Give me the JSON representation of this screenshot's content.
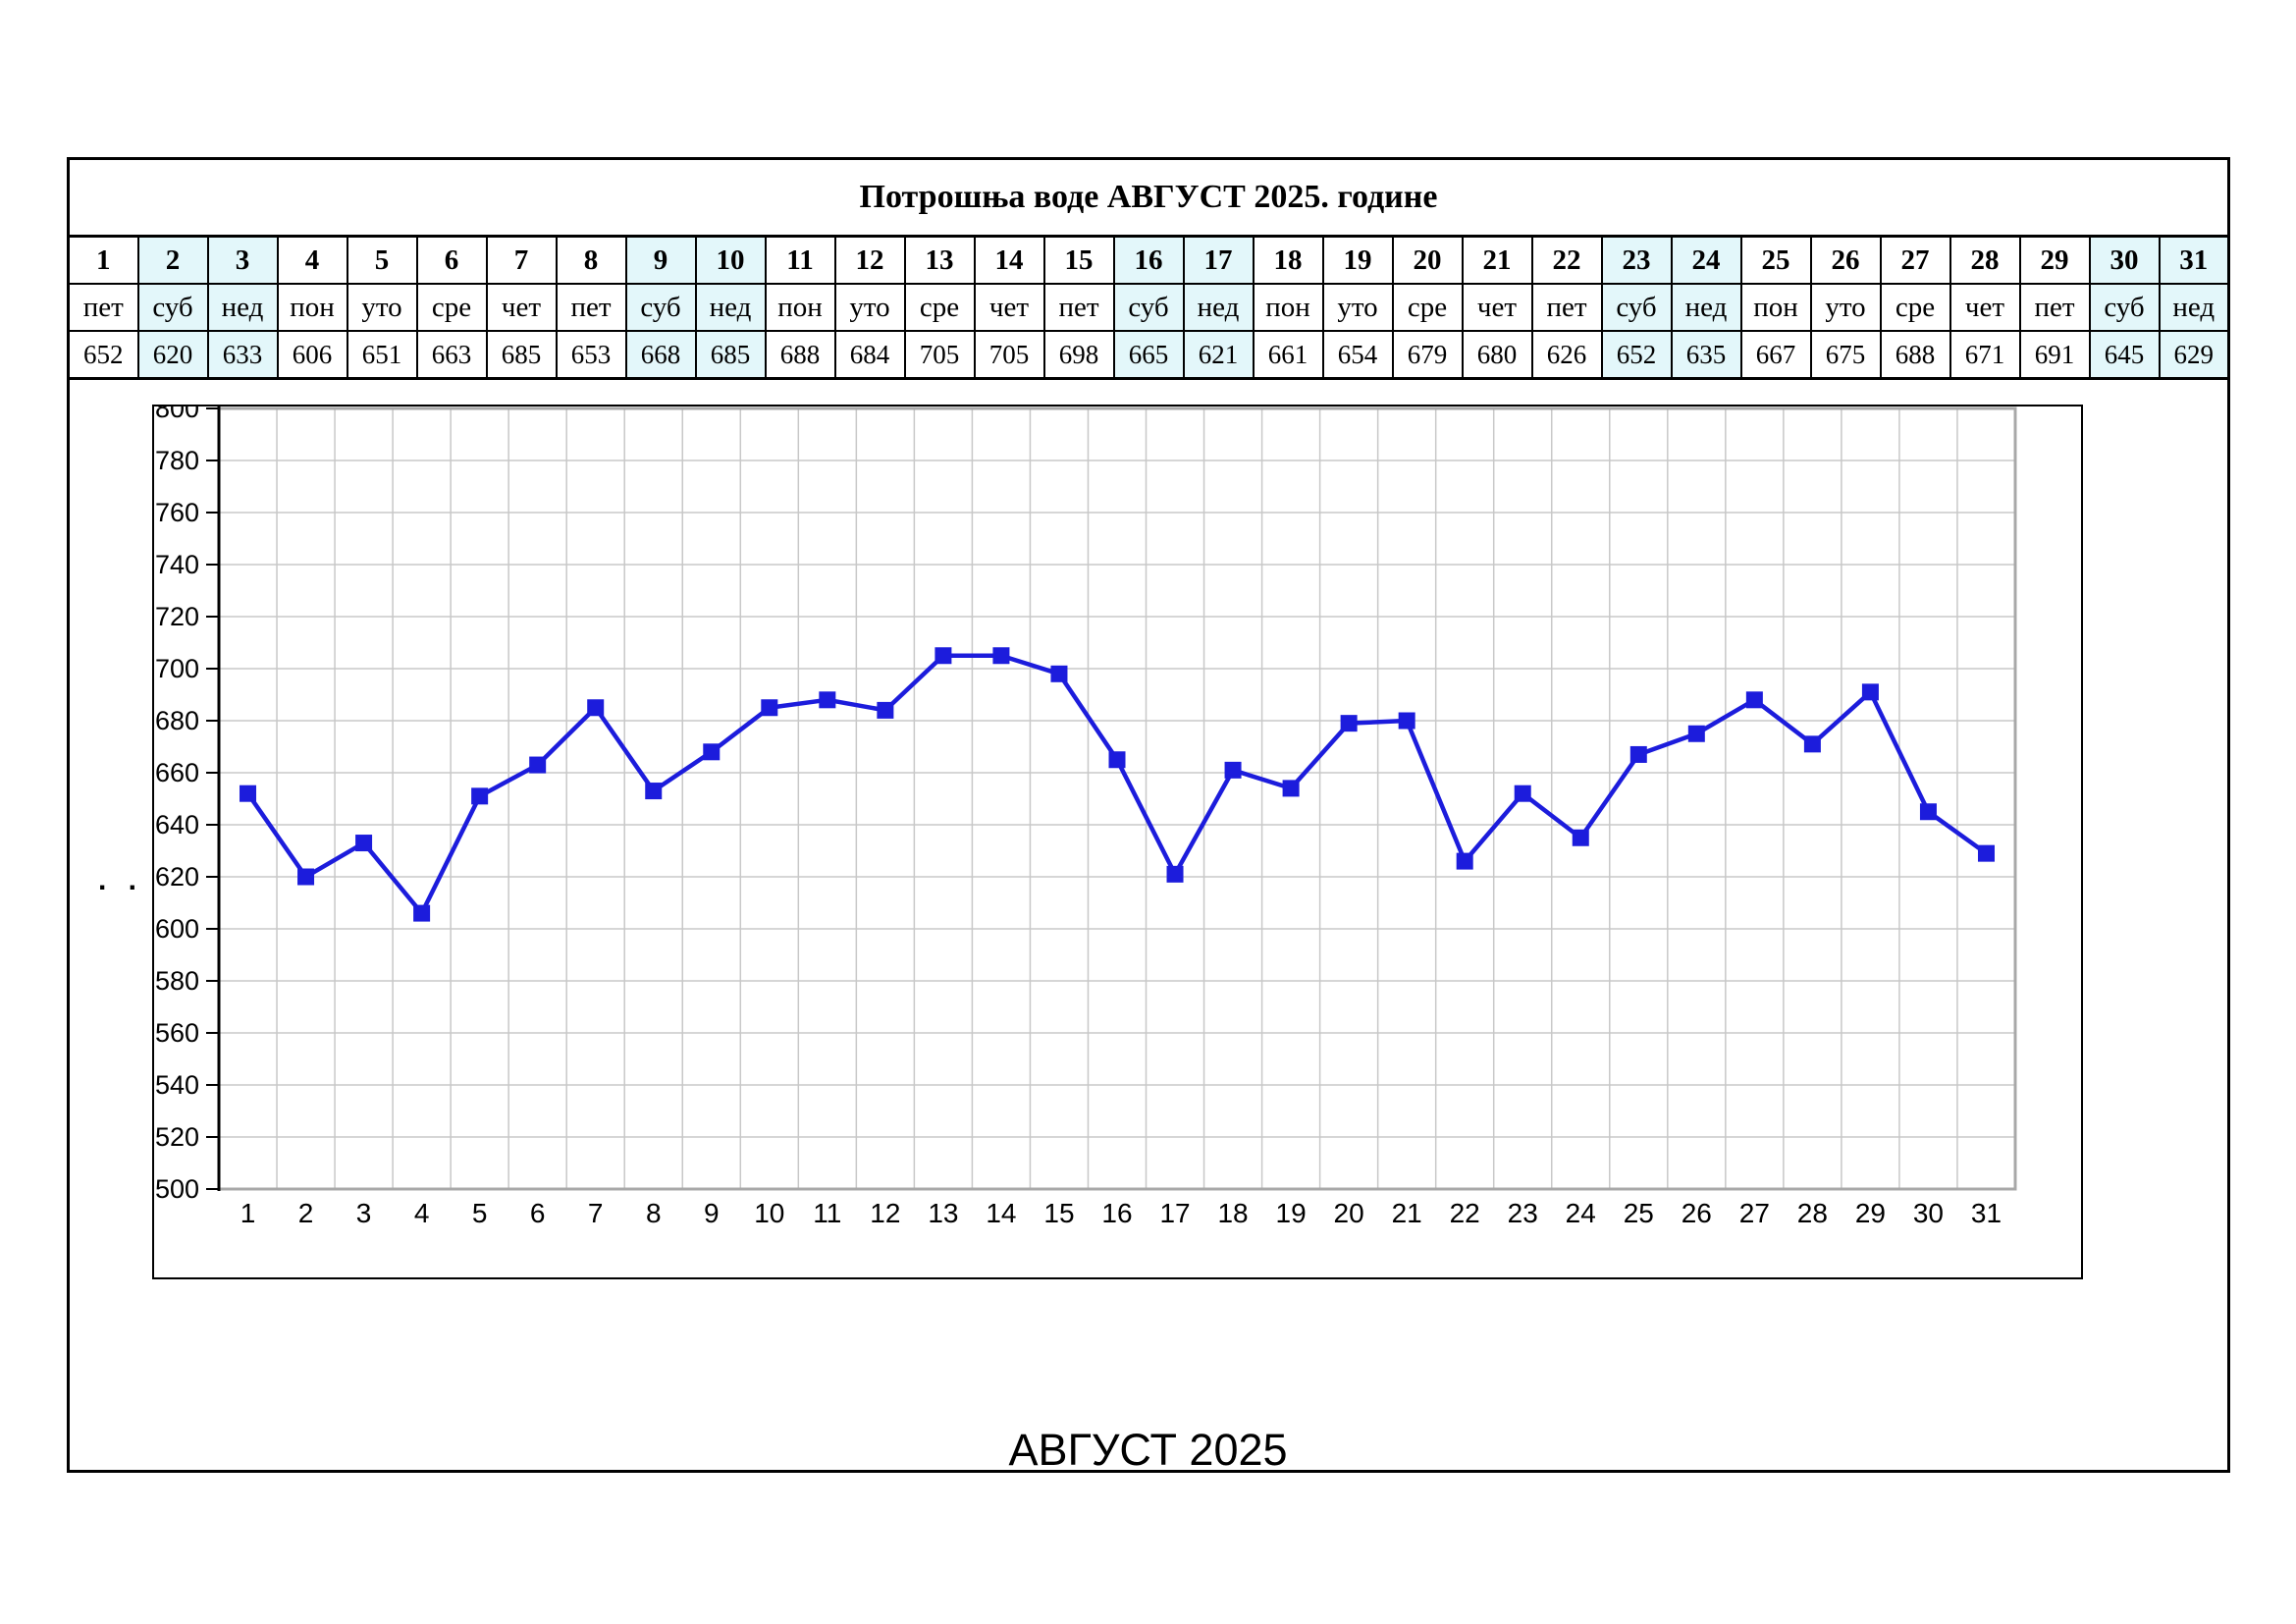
{
  "table": {
    "title": "Потрошња воде АВГУСТ 2025. године",
    "days": [
      {
        "num": 1,
        "name": "пет",
        "value": 652,
        "weekend": false
      },
      {
        "num": 2,
        "name": "суб",
        "value": 620,
        "weekend": true
      },
      {
        "num": 3,
        "name": "нед",
        "value": 633,
        "weekend": true
      },
      {
        "num": 4,
        "name": "пон",
        "value": 606,
        "weekend": false
      },
      {
        "num": 5,
        "name": "уто",
        "value": 651,
        "weekend": false
      },
      {
        "num": 6,
        "name": "сре",
        "value": 663,
        "weekend": false
      },
      {
        "num": 7,
        "name": "чет",
        "value": 685,
        "weekend": false
      },
      {
        "num": 8,
        "name": "пет",
        "value": 653,
        "weekend": false
      },
      {
        "num": 9,
        "name": "суб",
        "value": 668,
        "weekend": true
      },
      {
        "num": 10,
        "name": "нед",
        "value": 685,
        "weekend": true
      },
      {
        "num": 11,
        "name": "пон",
        "value": 688,
        "weekend": false
      },
      {
        "num": 12,
        "name": "уто",
        "value": 684,
        "weekend": false
      },
      {
        "num": 13,
        "name": "сре",
        "value": 705,
        "weekend": false
      },
      {
        "num": 14,
        "name": "чет",
        "value": 705,
        "weekend": false
      },
      {
        "num": 15,
        "name": "пет",
        "value": 698,
        "weekend": false
      },
      {
        "num": 16,
        "name": "суб",
        "value": 665,
        "weekend": true
      },
      {
        "num": 17,
        "name": "нед",
        "value": 621,
        "weekend": true
      },
      {
        "num": 18,
        "name": "пон",
        "value": 661,
        "weekend": false
      },
      {
        "num": 19,
        "name": "уто",
        "value": 654,
        "weekend": false
      },
      {
        "num": 20,
        "name": "сре",
        "value": 679,
        "weekend": false
      },
      {
        "num": 21,
        "name": "чет",
        "value": 680,
        "weekend": false
      },
      {
        "num": 22,
        "name": "пет",
        "value": 626,
        "weekend": false
      },
      {
        "num": 23,
        "name": "суб",
        "value": 652,
        "weekend": true
      },
      {
        "num": 24,
        "name": "нед",
        "value": 635,
        "weekend": true
      },
      {
        "num": 25,
        "name": "пон",
        "value": 667,
        "weekend": false
      },
      {
        "num": 26,
        "name": "уто",
        "value": 675,
        "weekend": false
      },
      {
        "num": 27,
        "name": "сре",
        "value": 688,
        "weekend": false
      },
      {
        "num": 28,
        "name": "чет",
        "value": 671,
        "weekend": false
      },
      {
        "num": 29,
        "name": "пет",
        "value": 691,
        "weekend": false
      },
      {
        "num": 30,
        "name": "суб",
        "value": 645,
        "weekend": true
      },
      {
        "num": 31,
        "name": "нед",
        "value": 629,
        "weekend": true
      }
    ]
  },
  "footer": {
    "caption": "АВГУСТ 2025"
  },
  "colors": {
    "line": "#1c1cdc",
    "marker": "#1c1cdc",
    "grid": "#c8c8c8",
    "plot_border": "#a8a8a8",
    "axis": "#000000",
    "weekend_bg": "#e3f7fa"
  },
  "chart_data": {
    "type": "line",
    "title": "",
    "x": [
      1,
      2,
      3,
      4,
      5,
      6,
      7,
      8,
      9,
      10,
      11,
      12,
      13,
      14,
      15,
      16,
      17,
      18,
      19,
      20,
      21,
      22,
      23,
      24,
      25,
      26,
      27,
      28,
      29,
      30,
      31
    ],
    "series": [
      {
        "name": "Потрошња воде",
        "values": [
          652,
          620,
          633,
          606,
          651,
          663,
          685,
          653,
          668,
          685,
          688,
          684,
          705,
          705,
          698,
          665,
          621,
          661,
          654,
          679,
          680,
          626,
          652,
          635,
          667,
          675,
          688,
          671,
          691,
          645,
          629
        ]
      }
    ],
    "xlabel": "",
    "ylabel": ". .",
    "ylim": [
      500,
      800
    ],
    "ytick_step": 20,
    "grid": true,
    "legend": "none",
    "marker": "square"
  }
}
